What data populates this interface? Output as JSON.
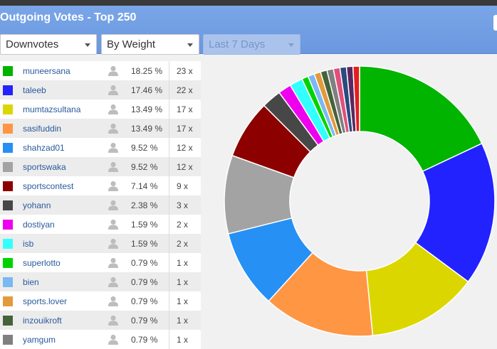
{
  "header": {
    "title": "Outgoing Votes - Top 250",
    "filters": [
      {
        "value": "Downvotes",
        "disabled": false
      },
      {
        "value": "By Weight",
        "disabled": false
      },
      {
        "value": "Last 7 Days",
        "disabled": true
      }
    ]
  },
  "voters": [
    {
      "name": "muneersana",
      "percent": "18.25 %",
      "count": "23 x",
      "color": "#00b400"
    },
    {
      "name": "taleeb",
      "percent": "17.46 %",
      "count": "22 x",
      "color": "#2222ff"
    },
    {
      "name": "mumtazsultana",
      "percent": "13.49 %",
      "count": "17 x",
      "color": "#dcd600"
    },
    {
      "name": "sasifuddin",
      "percent": "13.49 %",
      "count": "17 x",
      "color": "#ff9644"
    },
    {
      "name": "shahzad01",
      "percent": "9.52 %",
      "count": "12 x",
      "color": "#2690f5"
    },
    {
      "name": "sportswaka",
      "percent": "9.52 %",
      "count": "12 x",
      "color": "#a3a3a3"
    },
    {
      "name": "sportscontest",
      "percent": "7.14 %",
      "count": "9 x",
      "color": "#8d0000"
    },
    {
      "name": "yohann",
      "percent": "2.38 %",
      "count": "3 x",
      "color": "#474747"
    },
    {
      "name": "dostiyan",
      "percent": "1.59 %",
      "count": "2 x",
      "color": "#ee00ee"
    },
    {
      "name": "isb",
      "percent": "1.59 %",
      "count": "2 x",
      "color": "#33ffff"
    },
    {
      "name": "superlotto",
      "percent": "0.79 %",
      "count": "1 x",
      "color": "#00d400"
    },
    {
      "name": "bien",
      "percent": "0.79 %",
      "count": "1 x",
      "color": "#7ab8f2"
    },
    {
      "name": "sports.lover",
      "percent": "0.79 %",
      "count": "1 x",
      "color": "#e29a3c"
    },
    {
      "name": "inzouikroft",
      "percent": "0.79 %",
      "count": "1 x",
      "color": "#44633b"
    },
    {
      "name": "yamgum",
      "percent": "0.79 %",
      "count": "1 x",
      "color": "#808080"
    }
  ],
  "chart_data": {
    "type": "pie",
    "categories": [
      "muneersana",
      "taleeb",
      "mumtazsultana",
      "sasifuddin",
      "shahzad01",
      "sportswaka",
      "sportscontest",
      "yohann",
      "dostiyan",
      "isb",
      "superlotto",
      "bien",
      "sports.lover",
      "inzouikroft",
      "yamgum",
      "",
      "",
      "",
      ""
    ],
    "values": [
      18.25,
      17.46,
      13.49,
      13.49,
      9.52,
      9.52,
      7.14,
      2.38,
      1.59,
      1.59,
      0.79,
      0.79,
      0.79,
      0.79,
      0.79,
      0.79,
      0.79,
      0.79,
      0.79
    ],
    "colors": [
      "#00b400",
      "#2222ff",
      "#dcd600",
      "#ff9644",
      "#2690f5",
      "#a3a3a3",
      "#8d0000",
      "#474747",
      "#ee00ee",
      "#33ffff",
      "#00d400",
      "#7ab8f2",
      "#e29a3c",
      "#44633b",
      "#808080",
      "#e0507a",
      "#2b4b7e",
      "#5a2860",
      "#e02020"
    ],
    "donut": true
  }
}
